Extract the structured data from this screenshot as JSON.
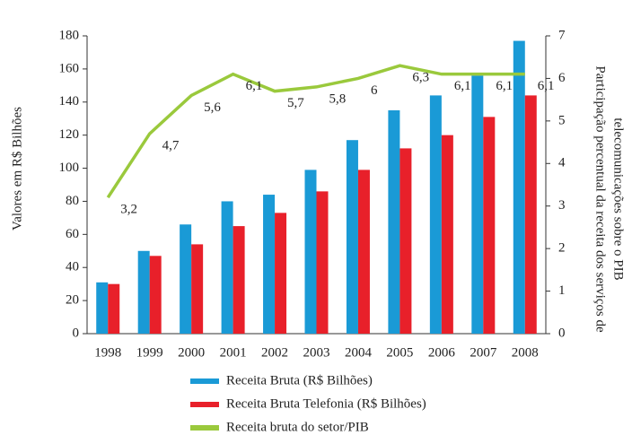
{
  "chart_data": {
    "type": "bar",
    "ylabel": "Valores em R$ Bilhões",
    "y2label": [
      "Participação percentual da receita dos serviços de",
      "telecomunicações sobre o PIB"
    ],
    "categories": [
      "1998",
      "1999",
      "2000",
      "2001",
      "2002",
      "2003",
      "2004",
      "2005",
      "2006",
      "2007",
      "2008"
    ],
    "series": [
      {
        "name": "Receita Bruta (R$ Bilhões)",
        "color": "#1a9ad6",
        "values": [
          31,
          50,
          66,
          80,
          84,
          99,
          117,
          135,
          144,
          156,
          177
        ]
      },
      {
        "name": "Receita Bruta Telefonia (R$ Bilhões)",
        "color": "#e8202a",
        "values": [
          30,
          47,
          54,
          65,
          73,
          86,
          99,
          112,
          120,
          131,
          144
        ]
      },
      {
        "name": "Receita bruta do setor/PIB",
        "color": "#9ac93c",
        "type": "line",
        "axis": "y2",
        "values": [
          3.2,
          4.7,
          5.6,
          6.1,
          5.7,
          5.8,
          6,
          6.3,
          6.1,
          6.1,
          6.1
        ],
        "value_labels": [
          "3,2",
          "4,7",
          "5,6",
          "6,1",
          "5,7",
          "5,8",
          "6",
          "6,3",
          "6,1",
          "6,1",
          "6,1"
        ]
      }
    ],
    "ylim": [
      0,
      180
    ],
    "yticks": [
      0,
      20,
      40,
      60,
      80,
      100,
      120,
      140,
      160,
      180
    ],
    "y2lim": [
      0,
      7
    ],
    "y2ticks": [
      0,
      1,
      2,
      3,
      4,
      5,
      6,
      7
    ]
  }
}
